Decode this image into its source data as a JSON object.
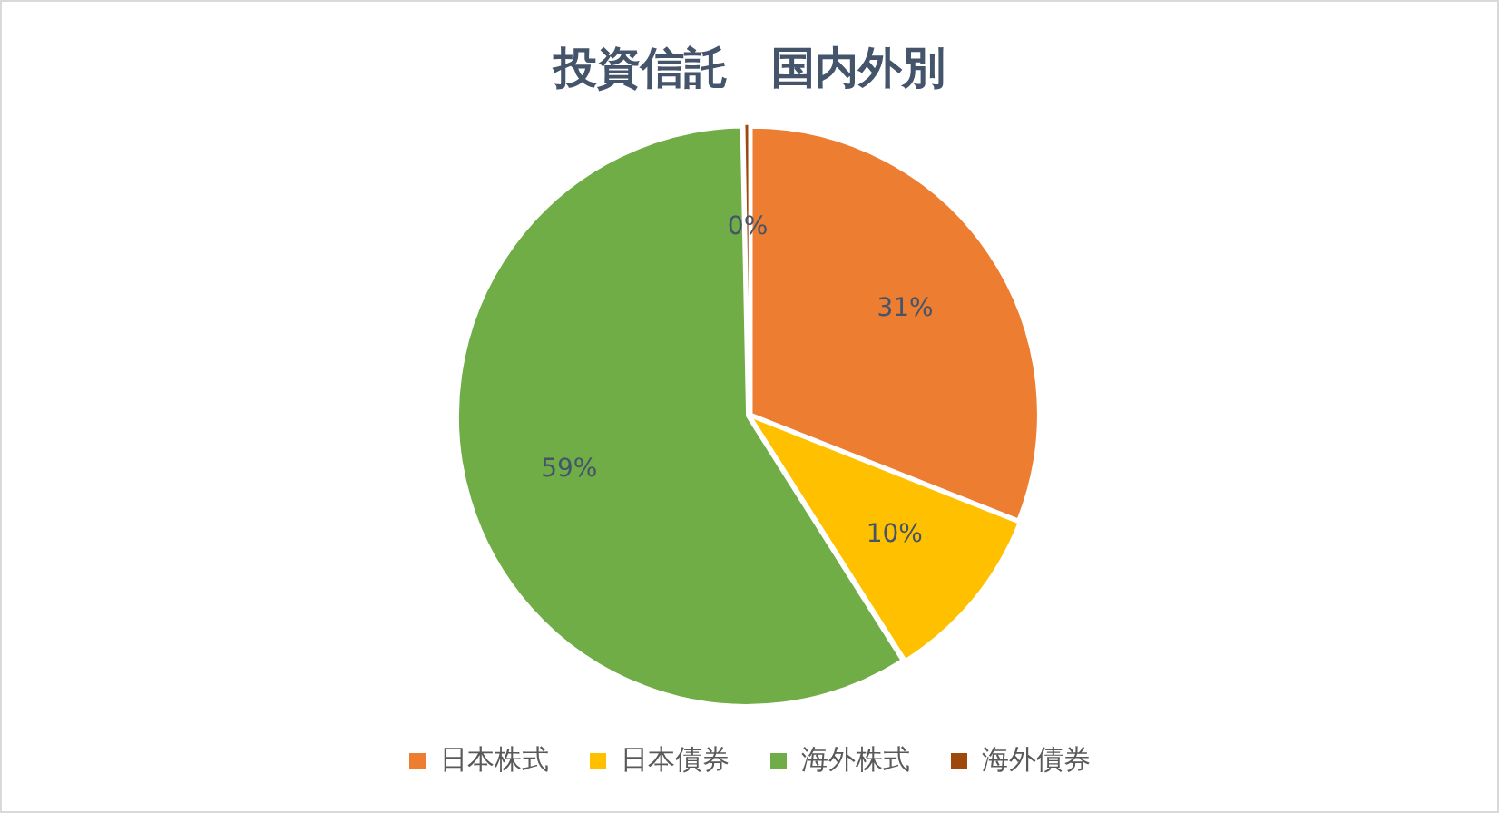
{
  "chart_data": {
    "type": "pie",
    "title": "投資信託　国内外別",
    "categories": [
      "日本株式",
      "日本債券",
      "海外株式",
      "海外債券"
    ],
    "values": [
      31,
      10,
      58.7,
      0.3
    ],
    "colors": [
      "#ed7d31",
      "#ffc000",
      "#70ad47",
      "#9e480e"
    ],
    "value_labels": [
      "31%",
      "10%",
      "59%",
      "0%"
    ],
    "legend": "bottom"
  }
}
